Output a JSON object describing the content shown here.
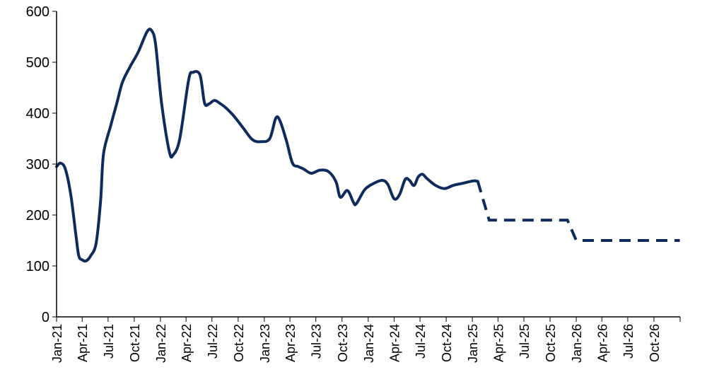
{
  "chart_data": {
    "type": "line",
    "title": "",
    "xlabel": "",
    "ylabel": "",
    "ylim": [
      0,
      600
    ],
    "yticks": [
      0,
      100,
      200,
      300,
      400,
      500,
      600
    ],
    "xlim": [
      "Jan-21",
      "Jan-27"
    ],
    "xticks": [
      "Jan-21",
      "Apr-21",
      "Jul-21",
      "Oct-21",
      "Jan-22",
      "Apr-22",
      "Jul-22",
      "Oct-22",
      "Jan-23",
      "Apr-23",
      "Jul-23",
      "Oct-23",
      "Jan-24",
      "Apr-24",
      "Jul-24",
      "Oct-24",
      "Jan-25",
      "Apr-25",
      "Jul-25",
      "Oct-25",
      "Jan-26",
      "Apr-26",
      "Jul-26",
      "Oct-26"
    ],
    "grid": false,
    "legend": "none",
    "line_color": "#0f2a5c",
    "series": [
      {
        "style": "solid",
        "points": [
          [
            "2021-01-01",
            295
          ],
          [
            "2021-01-15",
            302
          ],
          [
            "2021-02-01",
            290
          ],
          [
            "2021-02-20",
            240
          ],
          [
            "2021-03-10",
            160
          ],
          [
            "2021-03-20",
            120
          ],
          [
            "2021-04-01",
            112
          ],
          [
            "2021-04-15",
            110
          ],
          [
            "2021-05-01",
            120
          ],
          [
            "2021-05-20",
            145
          ],
          [
            "2021-06-05",
            230
          ],
          [
            "2021-06-15",
            320
          ],
          [
            "2021-07-10",
            375
          ],
          [
            "2021-08-01",
            420
          ],
          [
            "2021-08-20",
            460
          ],
          [
            "2021-09-15",
            490
          ],
          [
            "2021-10-15",
            520
          ],
          [
            "2021-11-15",
            560
          ],
          [
            "2021-12-01",
            562
          ],
          [
            "2021-12-15",
            535
          ],
          [
            "2022-01-05",
            420
          ],
          [
            "2022-02-01",
            325
          ],
          [
            "2022-02-15",
            318
          ],
          [
            "2022-03-10",
            350
          ],
          [
            "2022-04-10",
            465
          ],
          [
            "2022-04-25",
            480
          ],
          [
            "2022-05-20",
            475
          ],
          [
            "2022-06-05",
            420
          ],
          [
            "2022-06-20",
            418
          ],
          [
            "2022-07-10",
            425
          ],
          [
            "2022-08-01",
            418
          ],
          [
            "2022-08-20",
            410
          ],
          [
            "2022-09-15",
            395
          ],
          [
            "2022-10-20",
            370
          ],
          [
            "2022-11-20",
            348
          ],
          [
            "2022-12-20",
            344
          ],
          [
            "2023-01-20",
            350
          ],
          [
            "2023-02-10",
            390
          ],
          [
            "2023-02-25",
            385
          ],
          [
            "2023-03-20",
            345
          ],
          [
            "2023-04-10",
            302
          ],
          [
            "2023-05-01",
            295
          ],
          [
            "2023-05-20",
            290
          ],
          [
            "2023-06-15",
            282
          ],
          [
            "2023-07-15",
            288
          ],
          [
            "2023-08-15",
            285
          ],
          [
            "2023-09-10",
            265
          ],
          [
            "2023-09-25",
            235
          ],
          [
            "2023-10-20",
            248
          ],
          [
            "2023-11-10",
            225
          ],
          [
            "2023-11-20",
            222
          ],
          [
            "2023-12-20",
            250
          ],
          [
            "2024-01-20",
            262
          ],
          [
            "2024-02-20",
            268
          ],
          [
            "2024-03-10",
            260
          ],
          [
            "2024-04-01",
            232
          ],
          [
            "2024-04-20",
            240
          ],
          [
            "2024-05-10",
            270
          ],
          [
            "2024-05-25",
            268
          ],
          [
            "2024-06-10",
            258
          ],
          [
            "2024-06-25",
            275
          ],
          [
            "2024-07-10",
            280
          ],
          [
            "2024-07-25",
            272
          ],
          [
            "2024-08-25",
            258
          ],
          [
            "2024-09-25",
            252
          ],
          [
            "2024-10-25",
            258
          ],
          [
            "2024-11-25",
            262
          ],
          [
            "2025-01-05",
            267
          ],
          [
            "2025-01-20",
            266
          ]
        ]
      },
      {
        "style": "dashed",
        "points": [
          [
            "2025-01-20",
            266
          ],
          [
            "2025-03-01",
            190
          ],
          [
            "2025-12-01",
            190
          ],
          [
            "2026-01-01",
            150
          ],
          [
            "2026-12-31",
            150
          ]
        ]
      }
    ]
  }
}
